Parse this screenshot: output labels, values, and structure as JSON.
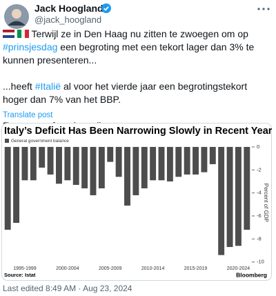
{
  "author": {
    "name": "Jack Hoogland",
    "handle": "@jack_hoogland"
  },
  "post": {
    "paragraphs": [
      [
        "Terwijl ze in Den Haag nu zitten te zwoegen om op ",
        "#prinsjesdag",
        " een begroting met een tekort lager dan 3% te kunnen presenteren..."
      ],
      [
        "...heeft ",
        "#Italië",
        " al voor het vierde jaar een begrotingstekort hoger dan 7% van het BBP."
      ],
      [
        "Europese afspraken zijn er om..."
      ]
    ],
    "translate": "Translate post"
  },
  "chart_data": {
    "type": "bar",
    "title": "Italy’s Deficit Has Been Narrowing Slowly in Recent Years",
    "categories": [
      null,
      null,
      "1995-1999",
      null,
      null,
      null,
      null,
      "2000-2004",
      null,
      null,
      null,
      null,
      "2005-2009",
      null,
      null,
      null,
      null,
      "2010-2014",
      null,
      null,
      null,
      null,
      "2015-2019",
      null,
      null,
      null,
      null,
      "2020-2024",
      null
    ],
    "series": [
      {
        "name": "General government balance",
        "color": "#4d4d4d",
        "values": [
          -7.2,
          -6.6,
          -2.9,
          -2.9,
          -1.8,
          -2.4,
          -3.2,
          -2.9,
          -3.3,
          -3.6,
          -4.2,
          -3.6,
          -1.3,
          -2.6,
          -5.1,
          -4.2,
          -3.6,
          -2.9,
          -2.9,
          -3.0,
          -2.6,
          -2.4,
          -2.4,
          -2.2,
          -1.5,
          -9.4,
          -8.7,
          -8.6,
          -7.2
        ]
      }
    ],
    "ylim": [
      -10.2,
      0.5
    ],
    "yticks": [
      0,
      -2,
      -4,
      -6,
      -8,
      -10
    ],
    "y_label": "Percent of GDP",
    "source": "Source: Istat",
    "credit": "Bloomberg",
    "grid": false
  },
  "footer": "Last edited 8:49 AM · Aug 23, 2024"
}
